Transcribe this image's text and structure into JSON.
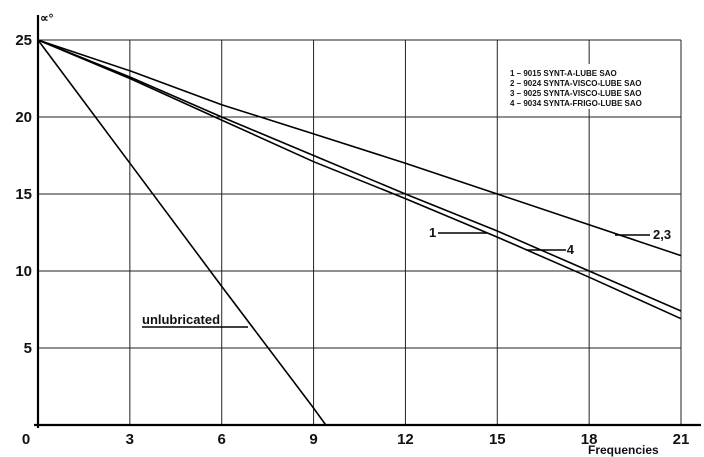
{
  "chart_data": {
    "type": "line",
    "xlabel": "Frequencies",
    "ylabel": "∝°",
    "xlim": [
      0,
      21
    ],
    "ylim": [
      0,
      25
    ],
    "grid": true,
    "x_ticks": [
      "0",
      "3",
      "6",
      "9",
      "12",
      "15",
      "18",
      "21"
    ],
    "y_ticks": [
      "0",
      "5",
      "10",
      "15",
      "20",
      "25"
    ],
    "legend": [
      "1 – 9015 SYNT-A-LUBE SAO",
      "2 – 9024 SYNTA-VISCO-LUBE SAO",
      "3 – 9025 SYNTA-VISCO-LUBE SAO",
      "4 – 9034 SYNTA-FRIGO-LUBE SAO"
    ],
    "legend_position": "top-right",
    "series": [
      {
        "name": "unlubricated",
        "x": [
          0,
          3,
          6,
          9,
          9.4
        ],
        "y": [
          25,
          17,
          9,
          1.1,
          0
        ]
      },
      {
        "name": "1",
        "x": [
          0,
          3,
          6,
          9,
          12,
          15,
          18,
          21
        ],
        "y": [
          25,
          22.5,
          19.8,
          17.1,
          14.7,
          12.2,
          9.6,
          6.9
        ]
      },
      {
        "name": "4",
        "x": [
          0,
          3,
          6,
          9,
          12,
          15,
          18,
          21
        ],
        "y": [
          25,
          22.6,
          20.0,
          17.5,
          15.0,
          12.6,
          10.0,
          7.4
        ]
      },
      {
        "name": "2,3",
        "x": [
          0,
          3,
          6,
          9,
          12,
          15,
          18,
          21
        ],
        "y": [
          25,
          23.0,
          20.8,
          18.9,
          17.0,
          15.0,
          13.0,
          11.0
        ]
      }
    ],
    "curve_labels": [
      {
        "text": "unlubricated",
        "series": "unlubricated"
      },
      {
        "text": "1",
        "series": "1"
      },
      {
        "text": "4",
        "series": "4"
      },
      {
        "text": "2,3",
        "series": "2,3"
      }
    ]
  }
}
